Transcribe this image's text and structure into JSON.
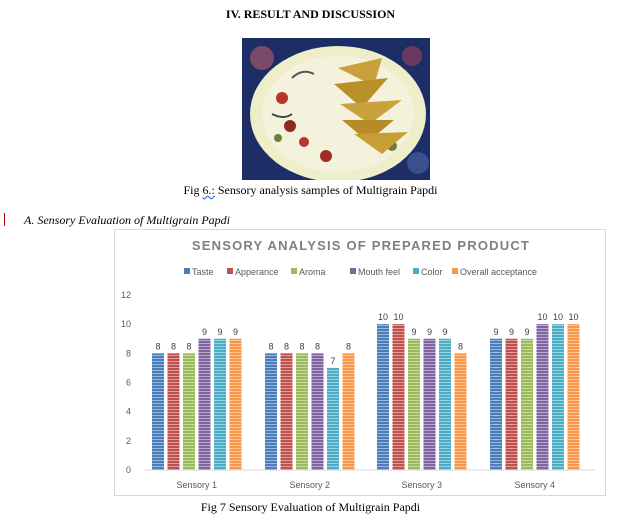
{
  "page": {
    "heading": "IV.  RESULT AND DISCUSSION",
    "fig6_prefix": "Fig ",
    "fig6_num": "6.:",
    "fig6_text": " Sensory analysis samples of Multigrain Papdi",
    "section_title": "A.    Sensory Evaluation of Multigrain Papdi",
    "fig7_caption": "Fig 7 Sensory Evaluation of Multigrain Papdi"
  },
  "colors": {
    "Taste": "#4a7ebb",
    "Apperance": "#c0504d",
    "Aroma": "#9bbb59",
    "Mouth feel": "#8064a2",
    "Color": "#4bacc6",
    "Overall acceptance": "#f79646"
  },
  "chart_data": {
    "type": "bar",
    "title": "SENSORY ANALYSIS OF PREPARED PRODUCT",
    "categories": [
      "Sensory 1",
      "Sensory 2",
      "Sensory 3",
      "Sensory 4"
    ],
    "series": [
      {
        "name": "Taste",
        "values": [
          8,
          8,
          10,
          9
        ]
      },
      {
        "name": "Apperance",
        "values": [
          8,
          8,
          10,
          9
        ]
      },
      {
        "name": "Aroma",
        "values": [
          8,
          8,
          9,
          9
        ]
      },
      {
        "name": "Mouth feel",
        "values": [
          9,
          8,
          9,
          10
        ]
      },
      {
        "name": "Color",
        "values": [
          9,
          7,
          9,
          10
        ]
      },
      {
        "name": "Overall acceptance",
        "values": [
          9,
          8,
          8,
          10
        ]
      }
    ],
    "yticks": [
      "0",
      "2",
      "4",
      "6",
      "8",
      "10",
      "12"
    ],
    "ylim": [
      0,
      12
    ],
    "legend": "top",
    "grid": false,
    "data_labels": true
  }
}
